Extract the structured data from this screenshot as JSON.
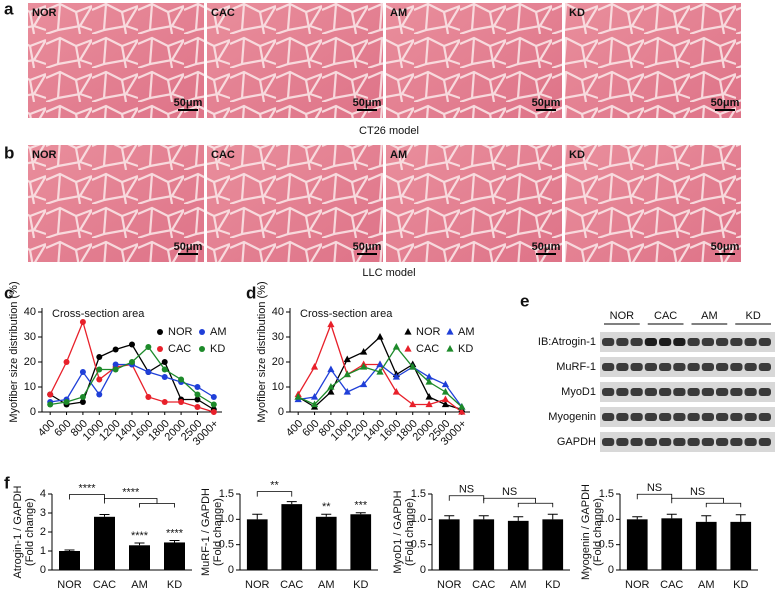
{
  "panel_labels": [
    "a",
    "b",
    "c",
    "d",
    "e",
    "f"
  ],
  "histology": [
    {
      "caption": "CT26 model",
      "groups": [
        "NOR",
        "CAC",
        "AM",
        "KD"
      ],
      "scale_bar": "50μm"
    },
    {
      "caption": "LLC model",
      "groups": [
        "NOR",
        "CAC",
        "AM",
        "KD"
      ],
      "scale_bar": "50μm"
    }
  ],
  "chart_data": [
    {
      "type": "line",
      "title": "Cross-section area",
      "ylabel": "Myofiber size distribution (%)",
      "marker": "circle",
      "categories": [
        "400",
        "600",
        "800",
        "1000",
        "1200",
        "1400",
        "1600",
        "1800",
        "2000",
        "2500",
        "3000+"
      ],
      "ylim": [
        0,
        40
      ],
      "yticks": [
        0,
        10,
        20,
        30,
        40
      ],
      "series": [
        {
          "name": "NOR",
          "color": "#000000",
          "values": [
            7,
            3,
            4,
            22,
            25,
            27,
            16,
            20,
            5,
            5,
            1
          ]
        },
        {
          "name": "CAC",
          "color": "#e8202a",
          "values": [
            7,
            20,
            36,
            13,
            18,
            19,
            6,
            4,
            4,
            2,
            0
          ]
        },
        {
          "name": "AM",
          "color": "#1f3fd8",
          "values": [
            4,
            5,
            16,
            7,
            19,
            19,
            16,
            14,
            12,
            10,
            6
          ]
        },
        {
          "name": "KD",
          "color": "#1d8a2a",
          "values": [
            3,
            4,
            6,
            17,
            17,
            20,
            26,
            17,
            13,
            7,
            3
          ]
        }
      ]
    },
    {
      "type": "line",
      "title": "Cross-section area",
      "ylabel": "Myofiber size distribution (%)",
      "marker": "triangle",
      "categories": [
        "400",
        "600",
        "800",
        "1000",
        "1200",
        "1400",
        "1600",
        "1800",
        "2000",
        "2500",
        "3000+"
      ],
      "ylim": [
        0,
        40
      ],
      "yticks": [
        0,
        10,
        20,
        30,
        40
      ],
      "series": [
        {
          "name": "NOR",
          "color": "#000000",
          "values": [
            6,
            2,
            8,
            21,
            24,
            30,
            15,
            19,
            6,
            3,
            1
          ]
        },
        {
          "name": "CAC",
          "color": "#e8202a",
          "values": [
            7,
            18,
            35,
            15,
            19,
            19,
            8,
            3,
            3,
            5,
            0
          ]
        },
        {
          "name": "AM",
          "color": "#1f3fd8",
          "values": [
            5,
            6,
            17,
            8,
            11,
            19,
            14,
            18,
            14,
            11,
            2
          ]
        },
        {
          "name": "KD",
          "color": "#1d8a2a",
          "values": [
            6,
            3,
            10,
            15,
            18,
            16,
            26,
            18,
            12,
            8,
            2
          ]
        }
      ]
    },
    {
      "type": "bar",
      "ylabel": [
        "Atrogin-1 / GAPDH",
        "(Fold change)"
      ],
      "categories": [
        "NOR",
        "CAC",
        "AM",
        "KD"
      ],
      "values": [
        1.0,
        2.8,
        1.3,
        1.45
      ],
      "errors": [
        0.05,
        0.12,
        0.12,
        0.1
      ],
      "color": "#000000",
      "ylim": [
        0,
        4
      ],
      "yticks": [
        0,
        1,
        2,
        3,
        4
      ],
      "annotations": [
        {
          "text": "****",
          "from": 0,
          "to": 1
        },
        {
          "text": "****",
          "from": 1,
          "to": [
            2,
            3
          ]
        },
        {
          "text": "****",
          "at": 2
        },
        {
          "text": "****",
          "at": 3
        }
      ]
    },
    {
      "type": "bar",
      "ylabel": [
        "MuRF-1 / GAPDH",
        "(Fold change)"
      ],
      "categories": [
        "NOR",
        "CAC",
        "AM",
        "KD"
      ],
      "values": [
        1.0,
        1.3,
        1.05,
        1.1
      ],
      "errors": [
        0.1,
        0.05,
        0.05,
        0.03
      ],
      "color": "#000000",
      "ylim": [
        0,
        1.5
      ],
      "yticks": [
        0,
        0.5,
        {
          "value": 1,
          "label": "1.0"
        },
        1.5
      ],
      "annotations": [
        {
          "text": "**",
          "from": 0,
          "to": 1
        },
        {
          "text": "**",
          "at": 2
        },
        {
          "text": "***",
          "at": 3
        }
      ]
    },
    {
      "type": "bar",
      "ylabel": [
        "MyoD1 / GAPDH",
        "(Fold change)"
      ],
      "categories": [
        "NOR",
        "CAC",
        "AM",
        "KD"
      ],
      "values": [
        1.0,
        1.0,
        0.97,
        1.0
      ],
      "errors": [
        0.07,
        0.07,
        0.08,
        0.1
      ],
      "color": "#000000",
      "ylim": [
        0,
        1.5
      ],
      "yticks": [
        0,
        0.5,
        {
          "value": 1,
          "label": "1.0"
        },
        1.5
      ],
      "annotations": [
        {
          "text": "NS",
          "from": 0,
          "to": 1
        },
        {
          "text": "NS",
          "from": 1,
          "to": [
            2,
            3
          ]
        }
      ]
    },
    {
      "type": "bar",
      "ylabel": [
        "Myogenin / GAPDH",
        "(Fold change)"
      ],
      "categories": [
        "NOR",
        "CAC",
        "AM",
        "KD"
      ],
      "values": [
        1.0,
        1.02,
        0.95,
        0.95
      ],
      "errors": [
        0.05,
        0.08,
        0.12,
        0.14
      ],
      "color": "#000000",
      "ylim": [
        0,
        1.5
      ],
      "yticks": [
        0,
        0.5,
        {
          "value": 1,
          "label": "1.0"
        },
        1.5
      ],
      "annotations": [
        {
          "text": "NS",
          "from": 0,
          "to": 1
        },
        {
          "text": "NS",
          "from": 1,
          "to": [
            2,
            3
          ]
        }
      ]
    }
  ],
  "blot": {
    "lanes": [
      "NOR",
      "CAC",
      "AM",
      "KD"
    ],
    "rows": [
      "IB:Atrogin-1",
      "MuRF-1",
      "MyoD1",
      "Myogenin",
      "GAPDH"
    ]
  }
}
